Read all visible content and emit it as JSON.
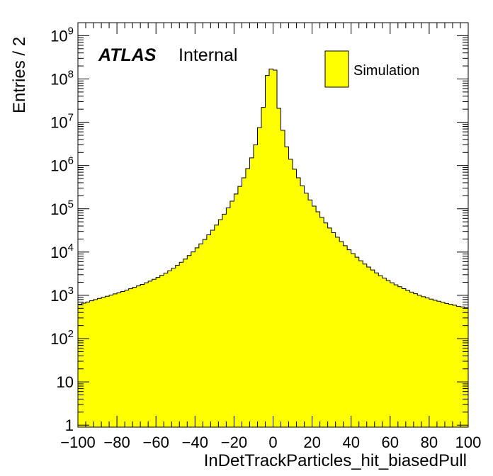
{
  "chart_data": {
    "type": "histogram",
    "xlabel": "InDetTrackParticles_hit_biasedPull",
    "ylabel": "Entries / 2",
    "xlim": [
      -100,
      100
    ],
    "ylim": [
      0.9,
      2000000000
    ],
    "yscale": "log",
    "bin_width": 2,
    "x_ticks": [
      "−100",
      "−80",
      "−60",
      "−40",
      "−20",
      "0",
      "20",
      "40",
      "60",
      "80",
      "100"
    ],
    "y_ticks": [
      {
        "value": 1,
        "base": "1",
        "exp": ""
      },
      {
        "value": 10,
        "base": "10",
        "exp": ""
      },
      {
        "value": 100,
        "base": "10",
        "exp": "2"
      },
      {
        "value": 1000,
        "base": "10",
        "exp": "3"
      },
      {
        "value": 10000,
        "base": "10",
        "exp": "4"
      },
      {
        "value": 100000,
        "base": "10",
        "exp": "5"
      },
      {
        "value": 1000000,
        "base": "10",
        "exp": "6"
      },
      {
        "value": 10000000,
        "base": "10",
        "exp": "7"
      },
      {
        "value": 100000000,
        "base": "10",
        "exp": "8"
      },
      {
        "value": 1000000000,
        "base": "10",
        "exp": "9"
      }
    ],
    "fill_color": "#ffff00",
    "line_color": "#000000",
    "grid": false,
    "legend": {
      "position": "top-right",
      "entries": [
        "Simulation"
      ]
    },
    "label": {
      "experiment": "ATLAS",
      "status": "Internal"
    },
    "series": [
      {
        "name": "Simulation",
        "x": [
          -99,
          -97,
          -95,
          -93,
          -91,
          -89,
          -87,
          -85,
          -83,
          -81,
          -79,
          -77,
          -75,
          -73,
          -71,
          -69,
          -67,
          -65,
          -63,
          -61,
          -59,
          -57,
          -55,
          -53,
          -51,
          -49,
          -47,
          -45,
          -43,
          -41,
          -39,
          -37,
          -35,
          -33,
          -31,
          -29,
          -27,
          -25,
          -23,
          -21,
          -19,
          -17,
          -15,
          -13,
          -11,
          -9,
          -7,
          -5,
          -3,
          -1,
          1,
          3,
          5,
          7,
          9,
          11,
          13,
          15,
          17,
          19,
          21,
          23,
          25,
          27,
          29,
          31,
          33,
          35,
          37,
          39,
          41,
          43,
          45,
          47,
          49,
          51,
          53,
          55,
          57,
          59,
          61,
          63,
          65,
          67,
          69,
          71,
          73,
          75,
          77,
          79,
          81,
          83,
          85,
          87,
          89,
          91,
          93,
          95,
          97,
          99
        ],
        "values": [
          620,
          660,
          700,
          750,
          800,
          850,
          900,
          950,
          1010,
          1080,
          1150,
          1230,
          1320,
          1420,
          1530,
          1650,
          1790,
          1950,
          2130,
          2350,
          2600,
          2900,
          3250,
          3700,
          4250,
          4950,
          5800,
          6900,
          8300,
          10100,
          12500,
          15500,
          19500,
          25000,
          32000,
          42000,
          56000,
          75000,
          105000,
          150000,
          220000,
          330000,
          520000,
          850000,
          1500000,
          3000000,
          7500000,
          22000000,
          120000000,
          170000000,
          160000000,
          21000000,
          6500000,
          2700000,
          1400000,
          820000,
          520000,
          340000,
          230000,
          160000,
          115000,
          85000,
          63000,
          47000,
          36000,
          28000,
          22000,
          17500,
          14000,
          11300,
          9200,
          7600,
          6300,
          5300,
          4500,
          3850,
          3300,
          2850,
          2500,
          2200,
          1950,
          1750,
          1580,
          1430,
          1300,
          1190,
          1090,
          1000,
          930,
          870,
          820,
          770,
          730,
          690,
          650,
          620,
          590,
          560,
          540,
          520
        ]
      }
    ]
  }
}
